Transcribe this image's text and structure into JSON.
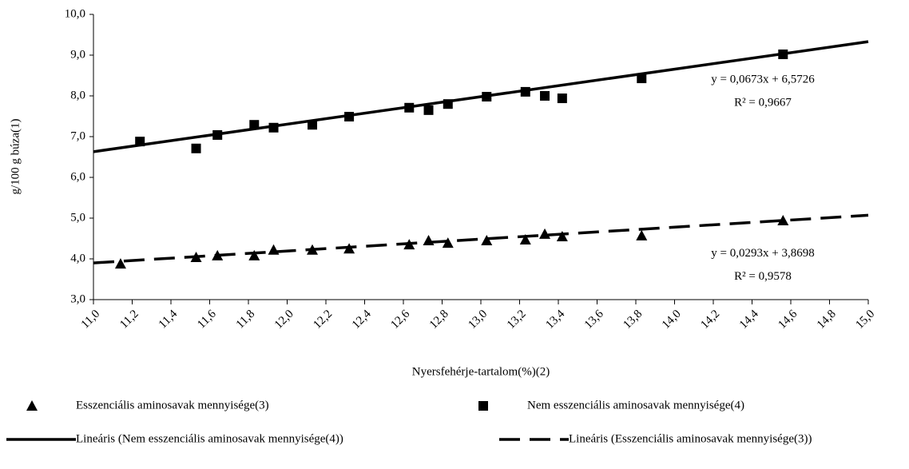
{
  "chart_data": {
    "type": "scatter",
    "x_label": "Nyersfehérje-tartalom(%)(2)",
    "y_label": "g/100 g búza(1)",
    "xlim": [
      11,
      15
    ],
    "ylim": [
      3,
      10
    ],
    "xticks": [
      {
        "value": 11,
        "label": "11,0"
      },
      {
        "value": 11.2,
        "label": "11,2"
      },
      {
        "value": 11.4,
        "label": "11,4"
      },
      {
        "value": 11.6,
        "label": "11,6"
      },
      {
        "value": 11.8,
        "label": "11,8"
      },
      {
        "value": 12,
        "label": "12,0"
      },
      {
        "value": 12.2,
        "label": "12,2"
      },
      {
        "value": 12.4,
        "label": "12,4"
      },
      {
        "value": 12.6,
        "label": "12,6"
      },
      {
        "value": 12.8,
        "label": "12,8"
      },
      {
        "value": 13,
        "label": "13,0"
      },
      {
        "value": 13.2,
        "label": "13,2"
      },
      {
        "value": 13.4,
        "label": "13,4"
      },
      {
        "value": 13.6,
        "label": "13,6"
      },
      {
        "value": 13.8,
        "label": "13,8"
      },
      {
        "value": 14,
        "label": "14,0"
      },
      {
        "value": 14.2,
        "label": "14,2"
      },
      {
        "value": 14.4,
        "label": "14,4"
      },
      {
        "value": 14.6,
        "label": "14,6"
      },
      {
        "value": 14.8,
        "label": "14,8"
      },
      {
        "value": 15,
        "label": "15,0"
      }
    ],
    "yticks": [
      {
        "value": 3,
        "label": "3,0"
      },
      {
        "value": 4,
        "label": "4,0"
      },
      {
        "value": 5,
        "label": "5,0"
      },
      {
        "value": 6,
        "label": "6,0"
      },
      {
        "value": 7,
        "label": "7,0"
      },
      {
        "value": 8,
        "label": "8,0"
      },
      {
        "value": 9,
        "label": "9,0"
      },
      {
        "value": 10,
        "label": "10,0"
      }
    ],
    "series": [
      {
        "name": "Esszenciális aminosavak mennyisége(3)",
        "marker": "triangle",
        "color": "#000000",
        "x": [
          11.14,
          11.53,
          11.64,
          11.83,
          11.93,
          12.13,
          12.32,
          12.63,
          12.73,
          12.83,
          13.03,
          13.23,
          13.33,
          13.42,
          13.83,
          14.56
        ],
        "values": [
          3.88,
          4.04,
          4.08,
          4.08,
          4.22,
          4.22,
          4.25,
          4.35,
          4.45,
          4.39,
          4.45,
          4.47,
          4.61,
          4.55,
          4.57,
          4.94
        ]
      },
      {
        "name": "Nem esszenciális aminosavak mennyisége(4)",
        "marker": "square",
        "color": "#000000",
        "x": [
          11.24,
          11.53,
          11.64,
          11.83,
          11.93,
          12.13,
          12.32,
          12.63,
          12.73,
          12.83,
          13.03,
          13.23,
          13.33,
          13.42,
          13.83,
          14.56
        ],
        "values": [
          6.88,
          6.71,
          7.04,
          7.29,
          7.22,
          7.29,
          7.49,
          7.71,
          7.65,
          7.8,
          7.98,
          8.1,
          8.0,
          7.94,
          8.43,
          9.02
        ]
      }
    ],
    "trendlines": [
      {
        "name": "Lineáris (Nem esszenciális aminosavak mennyisége(4))",
        "dash": "solid",
        "color": "#000000",
        "x": [
          11,
          15
        ],
        "values": [
          6.63,
          9.33
        ],
        "equation": "y = 0,0673x + 6,5726",
        "r_squared": "R² = 0,9667"
      },
      {
        "name": "Lineáris (Esszenciális aminosavak mennyisége(3))",
        "dash": "dashed",
        "color": "#000000",
        "x": [
          11,
          15
        ],
        "values": [
          3.9,
          5.07
        ],
        "equation": "y = 0,0293x + 3,8698",
        "r_squared": "R² = 0,9578"
      }
    ]
  }
}
